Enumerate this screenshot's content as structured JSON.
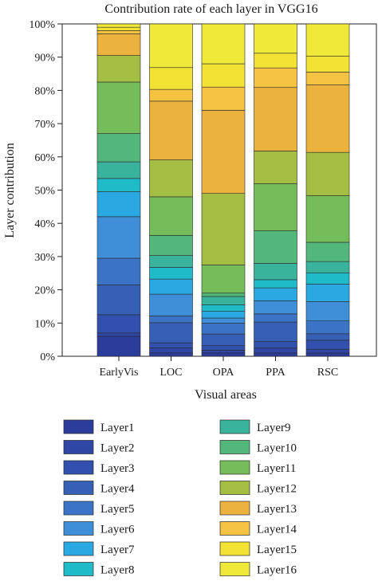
{
  "chart_data": {
    "type": "bar",
    "stacked": true,
    "title": "Contribution rate of each layer in VGG16",
    "xlabel": "Visual areas",
    "ylabel": "Layer contribution",
    "ylim": [
      0,
      100
    ],
    "y_unit": "%",
    "y_ticks": [
      "0%",
      "10%",
      "20%",
      "30%",
      "40%",
      "50%",
      "60%",
      "70%",
      "80%",
      "90%",
      "100%"
    ],
    "grid": false,
    "legend_position": "bottom",
    "categories": [
      "EarlyVis",
      "LOC",
      "OPA",
      "PPA",
      "RSC"
    ],
    "series": [
      {
        "name": "Layer1",
        "color": "#2c3c9a",
        "values": [
          6.0,
          1.0,
          1.0,
          1.0,
          1.0
        ]
      },
      {
        "name": "Layer2",
        "color": "#2f46a4",
        "values": [
          1.0,
          1.5,
          0.8,
          1.5,
          1.2
        ]
      },
      {
        "name": "Layer3",
        "color": "#3250ae",
        "values": [
          5.5,
          1.5,
          1.4,
          2.0,
          2.8
        ]
      },
      {
        "name": "Layer4",
        "color": "#365fb6",
        "values": [
          9.0,
          6.0,
          3.5,
          6.0,
          2.0
        ]
      },
      {
        "name": "Layer5",
        "color": "#3b74c6",
        "values": [
          8.0,
          2.0,
          3.3,
          2.5,
          4.0
        ]
      },
      {
        "name": "Layer6",
        "color": "#3e8fd8",
        "values": [
          12.5,
          6.5,
          1.5,
          4.0,
          6.0
        ]
      },
      {
        "name": "Layer7",
        "color": "#2aa8e2",
        "values": [
          7.5,
          4.5,
          2.0,
          4.0,
          5.5
        ]
      },
      {
        "name": "Layer8",
        "color": "#1fbbc8",
        "values": [
          4.0,
          3.5,
          2.0,
          2.5,
          3.5
        ]
      },
      {
        "name": "Layer9",
        "color": "#3ab39c",
        "values": [
          5.0,
          3.5,
          2.5,
          5.0,
          3.5
        ]
      },
      {
        "name": "Layer10",
        "color": "#53b67a",
        "values": [
          8.5,
          6.0,
          1.0,
          10.0,
          6.0
        ]
      },
      {
        "name": "Layer11",
        "color": "#74bd5a",
        "values": [
          15.5,
          11.5,
          8.5,
          14.5,
          14.5
        ]
      },
      {
        "name": "Layer12",
        "color": "#a4be44",
        "values": [
          8.0,
          11.0,
          21.5,
          10.0,
          13.5
        ]
      },
      {
        "name": "Layer13",
        "color": "#ecb23e",
        "values": [
          6.5,
          17.5,
          25.0,
          19.5,
          21.0
        ]
      },
      {
        "name": "Layer14",
        "color": "#f5c242",
        "values": [
          1.0,
          3.5,
          7.0,
          6.0,
          4.0
        ]
      },
      {
        "name": "Layer15",
        "color": "#f2e233",
        "values": [
          1.0,
          6.5,
          7.0,
          4.5,
          5.0
        ]
      },
      {
        "name": "Layer16",
        "color": "#efe93a",
        "values": [
          1.0,
          13.0,
          12.0,
          9.0,
          10.0
        ]
      }
    ]
  }
}
